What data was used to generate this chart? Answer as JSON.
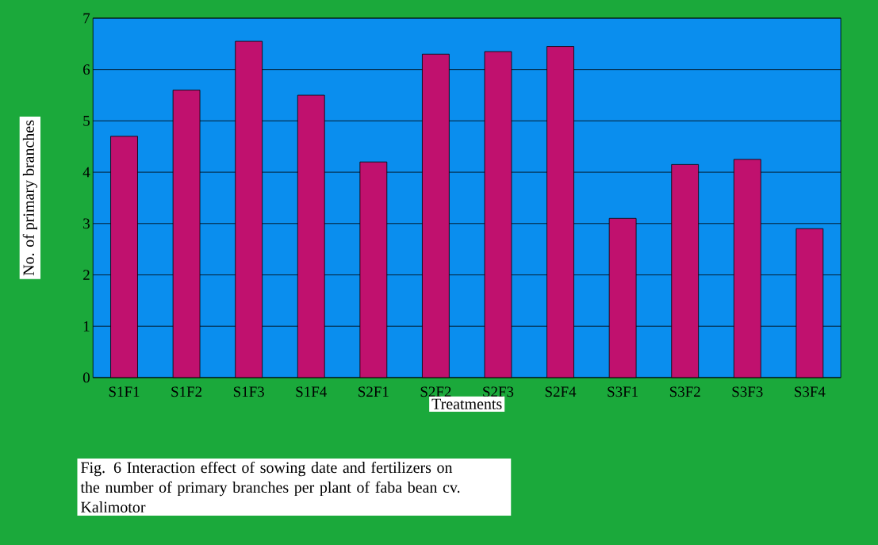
{
  "chart_data": {
    "type": "bar",
    "xlabel": "Treatments",
    "ylabel": "No. of primary branches",
    "categories": [
      "S1F1",
      "S1F2",
      "S1F3",
      "S1F4",
      "S2F1",
      "S2F2",
      "S2F3",
      "S2F4",
      "S3F1",
      "S3F2",
      "S3F3",
      "S3F4"
    ],
    "values": [
      4.7,
      5.6,
      6.55,
      5.5,
      4.2,
      6.3,
      6.35,
      6.45,
      3.1,
      4.15,
      4.25,
      2.9
    ],
    "color": "#c0116e",
    "ylim": [
      0,
      7
    ],
    "yticks": [
      0,
      1,
      2,
      3,
      4,
      5,
      6,
      7
    ],
    "grid": "y",
    "annotations": [
      "Fig. 6 Interaction effect of sowing date and fertilizers on the number of primary branches per plant of faba bean cv. Kalimotor"
    ]
  }
}
